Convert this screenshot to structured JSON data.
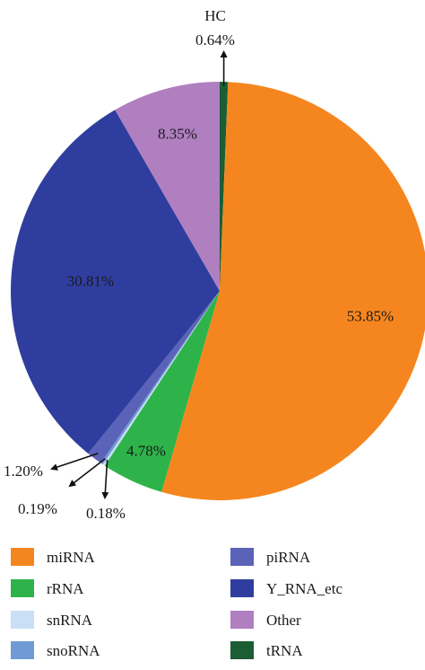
{
  "chart_data": {
    "type": "pie",
    "title": "",
    "slices": [
      {
        "name": "tRNA",
        "value": 0.64,
        "label": "0.64%",
        "color": "#1b5e34"
      },
      {
        "name": "miRNA",
        "value": 53.85,
        "label": "53.85%",
        "color": "#f5861f"
      },
      {
        "name": "rRNA",
        "value": 4.78,
        "label": "4.78%",
        "color": "#2db34a"
      },
      {
        "name": "snRNA",
        "value": 0.18,
        "label": "0.18%",
        "color": "#c9dff5"
      },
      {
        "name": "snoRNA",
        "value": 0.19,
        "label": "0.19%",
        "color": "#6f9ad6"
      },
      {
        "name": "piRNA",
        "value": 1.2,
        "label": "1.20%",
        "color": "#5a63b8"
      },
      {
        "name": "Y_RNA_etc",
        "value": 30.81,
        "label": "30.81%",
        "color": "#2f3e9e"
      },
      {
        "name": "Other",
        "value": 8.35,
        "label": "8.35%",
        "color": "#b07fc0"
      }
    ],
    "callout_title": "HC",
    "legend": [
      {
        "name": "miRNA",
        "color": "#f5861f"
      },
      {
        "name": "rRNA",
        "color": "#2db34a"
      },
      {
        "name": "snRNA",
        "color": "#c9dff5"
      },
      {
        "name": "snoRNA",
        "color": "#6f9ad6"
      },
      {
        "name": "piRNA",
        "color": "#5a63b8"
      },
      {
        "name": "Y_RNA_etc",
        "color": "#2f3e9e"
      },
      {
        "name": "Other",
        "color": "#b07fc0"
      },
      {
        "name": "tRNA",
        "color": "#1b5e34"
      }
    ],
    "legend_placement": "bottom"
  }
}
